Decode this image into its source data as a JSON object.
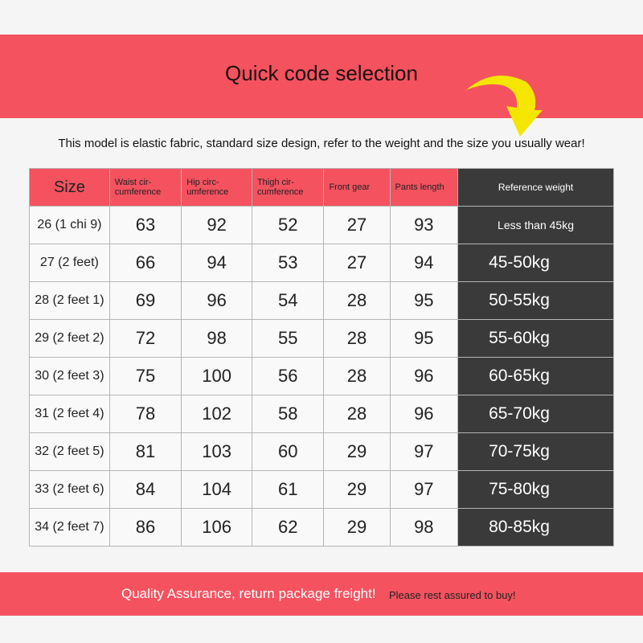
{
  "title": "Quick code selection",
  "note": "This model is elastic fabric, standard size design, refer to the weight and the size you usually wear!",
  "headers": [
    "Size",
    "Waist cir-cumference",
    "Hip circ-umference",
    "Thigh cir-cumference",
    "Front gear",
    "Pants length",
    "Reference weight"
  ],
  "rows": [
    [
      "26 (1 chi 9)",
      "63",
      "92",
      "52",
      "27",
      "93",
      "Less than 45kg"
    ],
    [
      "27 (2 feet)",
      "66",
      "94",
      "53",
      "27",
      "94",
      "45-50kg"
    ],
    [
      "28 (2 feet 1)",
      "69",
      "96",
      "54",
      "28",
      "95",
      "50-55kg"
    ],
    [
      "29 (2 feet 2)",
      "72",
      "98",
      "55",
      "28",
      "95",
      "55-60kg"
    ],
    [
      "30 (2 feet 3)",
      "75",
      "100",
      "56",
      "28",
      "96",
      "60-65kg"
    ],
    [
      "31 (2 feet 4)",
      "78",
      "102",
      "58",
      "28",
      "96",
      "65-70kg"
    ],
    [
      "32 (2 feet 5)",
      "81",
      "103",
      "60",
      "29",
      "97",
      "70-75kg"
    ],
    [
      "33 (2 feet 6)",
      "84",
      "104",
      "61",
      "29",
      "97",
      "75-80kg"
    ],
    [
      "34 (2 feet 7)",
      "86",
      "106",
      "62",
      "29",
      "98",
      "80-85kg"
    ]
  ],
  "footer": {
    "quality": "Quality Assurance, return package freight!",
    "assure": "Please rest assured to buy!"
  },
  "colors": {
    "accent": "#f4525f",
    "dark": "#3a3a3a",
    "arrow": "#f5e600"
  },
  "icons": {
    "arrow": "curved-arrow-icon"
  }
}
